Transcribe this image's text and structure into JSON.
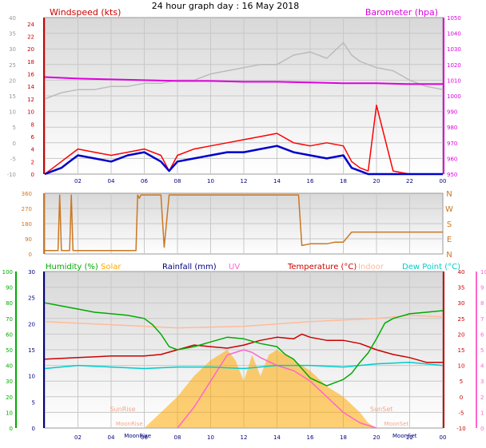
{
  "title": "24 hour graph day : 16 May 2018",
  "colors": {
    "wind_avg": "#0000cc",
    "wind_gust": "#ff0000",
    "baro": "#dd00dd",
    "baro_alt": "#bbbbbb",
    "wind_dir": "#cc7722",
    "humidity": "#00aa00",
    "solar": "#ffaa00",
    "rain": "#000080",
    "uv": "#ff66cc",
    "temp": "#cc0000",
    "indoor": "#ffbb99",
    "dew": "#00cccc"
  },
  "chart_data": [
    {
      "type": "line",
      "panel": "wind-baro",
      "legend_left": "Windspeed (kts)",
      "legend_right": "Barometer (hpa)",
      "x_ticks": [
        "02",
        "04",
        "06",
        "08",
        "10",
        "12",
        "14",
        "16",
        "18",
        "20",
        "22",
        "00"
      ],
      "xlim": [
        0,
        24
      ],
      "y_left_ticks_outer": [
        "40",
        "35",
        "30",
        "25",
        "20",
        "15",
        "10",
        "5",
        "0",
        "-5",
        "-10"
      ],
      "y_left_ticks": [
        "24",
        "22",
        "20",
        "18",
        "16",
        "14",
        "12",
        "10",
        "8",
        "6",
        "4",
        "2",
        "0"
      ],
      "y_right_ticks": [
        "1050",
        "1040",
        "1030",
        "1020",
        "1010",
        "1000",
        "990",
        "980",
        "970",
        "960",
        "950"
      ],
      "ylim_left": [
        0,
        25
      ],
      "ylim_right": [
        950,
        1050
      ],
      "series": [
        {
          "name": "Barometer",
          "axis": "right",
          "x": [
            0,
            2,
            4,
            6,
            8,
            10,
            12,
            14,
            16,
            18,
            20,
            22,
            24
          ],
          "y": [
            1012,
            1011,
            1010.5,
            1010,
            1009.5,
            1009.5,
            1009,
            1009,
            1008.5,
            1008,
            1008,
            1007.5,
            1007.5
          ]
        },
        {
          "axis": "left",
          "x": [
            0,
            0.5,
            1,
            2,
            3,
            4,
            5,
            6,
            7,
            8,
            9,
            10,
            11,
            12,
            13,
            14,
            15,
            16,
            17,
            18,
            18.5,
            19,
            20,
            21,
            22,
            23,
            24
          ],
          "y": [
            12,
            12.5,
            13,
            13.5,
            13.5,
            14,
            14,
            14.5,
            14.5,
            15,
            15,
            16,
            16.5,
            17,
            17.5,
            17.5,
            19,
            19.5,
            18.5,
            21,
            19,
            18,
            17,
            16.5,
            15,
            14,
            13.5
          ]
        },
        {
          "axis": "left",
          "x": [
            0,
            0.5,
            1,
            1.5,
            2,
            3,
            4,
            5,
            6,
            7,
            7.5,
            8,
            9,
            10,
            11,
            12,
            13,
            14,
            15,
            16,
            17,
            18,
            18.5,
            19,
            19.5,
            20,
            22,
            24
          ],
          "y": [
            0,
            0.5,
            1,
            2,
            3,
            2.5,
            2,
            3,
            3.5,
            2,
            0.5,
            2,
            2.5,
            3,
            3.5,
            3.5,
            4,
            4.5,
            3.5,
            3,
            2.5,
            3,
            1,
            0.5,
            0,
            0,
            0,
            0
          ]
        },
        {
          "axis": "left",
          "x": [
            0,
            0.5,
            1,
            1.5,
            2,
            3,
            4,
            5,
            6,
            7,
            7.5,
            8,
            9,
            10,
            11,
            12,
            13,
            14,
            15,
            16,
            17,
            18,
            18.5,
            19,
            19.5,
            20,
            21,
            22,
            23,
            24
          ],
          "y": [
            0,
            1,
            2,
            3,
            4,
            3.5,
            3,
            3.5,
            4,
            3,
            0.5,
            3,
            4,
            4.5,
            5,
            5.5,
            6,
            6.5,
            5,
            4.5,
            5,
            4.5,
            2,
            1,
            0.5,
            11,
            0.5,
            0,
            0,
            0
          ]
        }
      ]
    },
    {
      "type": "line",
      "panel": "wind-direction",
      "y_left_ticks": [
        "360",
        "270",
        "180",
        "90",
        "0"
      ],
      "y_right_labels": [
        "N",
        "W",
        "S",
        "E",
        "N"
      ],
      "ylim": [
        0,
        360
      ],
      "series": [
        {
          "x": [
            0,
            0.8,
            0.9,
            1,
            1.5,
            1.6,
            1.7,
            3,
            4,
            5,
            5.5,
            5.6,
            5.7,
            5.8,
            6,
            6.5,
            7,
            7.2,
            7.5,
            8,
            9,
            10,
            11,
            12,
            13,
            14,
            15,
            15.3,
            15.5,
            16,
            17,
            17.5,
            18,
            18.5,
            19,
            20,
            21,
            22,
            23,
            24
          ],
          "y": [
            20,
            20,
            350,
            20,
            20,
            350,
            20,
            20,
            20,
            20,
            20,
            350,
            330,
            350,
            350,
            350,
            350,
            40,
            350,
            350,
            350,
            350,
            350,
            350,
            350,
            350,
            350,
            350,
            50,
            60,
            60,
            70,
            70,
            130,
            130,
            130,
            130,
            130,
            130,
            130
          ]
        }
      ]
    },
    {
      "type": "area",
      "panel": "temp-humidity-solar",
      "legend": [
        "Humidity (%)",
        "Solar",
        "Rainfall (mm)",
        "UV",
        "Temperature (°C)",
        "Indoor",
        "Dew Point (°C)"
      ],
      "y_left_outer_ticks": [
        "100",
        "90",
        "80",
        "70",
        "60",
        "50",
        "40",
        "30",
        "20",
        "10",
        "0"
      ],
      "y_left_ticks": [
        "30",
        "25",
        "20",
        "15",
        "10",
        "5",
        "0"
      ],
      "y_right_ticks": [
        "40",
        "35",
        "30",
        "25",
        "20",
        "15",
        "10",
        "5",
        "0",
        "-5",
        "-10"
      ],
      "y_right_outer_ticks": [
        "10",
        "9",
        "8",
        "7",
        "6",
        "5",
        "4",
        "3",
        "2",
        "1",
        "0"
      ],
      "ylim_left": [
        0,
        30
      ],
      "ylim_right": [
        -10,
        40
      ],
      "annotations": [
        "SunRise",
        "SunSet",
        "MoonRise",
        "MoonSet",
        "MoonRise",
        "MoonSet"
      ],
      "series": [
        {
          "name": "Humidity",
          "axis": "left",
          "x": [
            0,
            1,
            2,
            3,
            4,
            5,
            6,
            6.5,
            7,
            7.5,
            8,
            9,
            10,
            11,
            12,
            13,
            14,
            14.5,
            15,
            15.5,
            16,
            17,
            18,
            18.5,
            19,
            19.5,
            20,
            20.5,
            21,
            22,
            23,
            24
          ],
          "y": [
            80,
            78,
            76,
            74,
            73,
            72,
            70,
            66,
            60,
            52,
            50,
            52,
            55,
            58,
            57,
            54,
            52,
            47,
            44,
            38,
            32,
            27,
            31,
            35,
            42,
            48,
            57,
            67,
            70,
            73,
            74,
            75
          ]
        },
        {
          "name": "Indoor",
          "axis": "right",
          "x": [
            0,
            4,
            8,
            12,
            16,
            20,
            22,
            24
          ],
          "y": [
            24,
            23,
            22,
            22.5,
            24,
            25,
            26,
            25.5
          ]
        },
        {
          "name": "Temperature",
          "axis": "right",
          "x": [
            0,
            2,
            4,
            6,
            7,
            8,
            9,
            10,
            11,
            12,
            13,
            14,
            15,
            15.5,
            16,
            17,
            18,
            19,
            20,
            21,
            22,
            23,
            24
          ],
          "y": [
            12,
            12.5,
            13,
            13,
            13.5,
            15,
            16.5,
            16,
            15.5,
            16.5,
            18,
            19,
            18.5,
            20,
            19,
            18,
            18,
            17,
            15,
            13.5,
            12.5,
            11,
            11
          ]
        },
        {
          "name": "Dew Point",
          "axis": "right",
          "x": [
            0,
            2,
            4,
            6,
            8,
            10,
            12,
            14,
            16,
            18,
            20,
            22,
            24
          ],
          "y": [
            9,
            10,
            9.5,
            9,
            9.5,
            9.5,
            9,
            10,
            10,
            9.5,
            10.5,
            11,
            10
          ]
        },
        {
          "name": "Solar",
          "axis": "left",
          "x": [
            6,
            7,
            8,
            9,
            10,
            11,
            11.5,
            12,
            12.5,
            13,
            13.5,
            14,
            15,
            16,
            17,
            18,
            19,
            19.5,
            20
          ],
          "y": [
            0,
            3,
            6,
            10,
            13,
            15,
            13,
            9,
            14,
            10,
            14,
            15,
            13,
            11,
            8,
            6,
            3,
            1,
            0
          ]
        },
        {
          "name": "UV",
          "axis": "left",
          "x": [
            8,
            9,
            10,
            11,
            12,
            12.5,
            13,
            14,
            15,
            16,
            17,
            18,
            19,
            20
          ],
          "y": [
            0,
            4,
            9,
            14,
            15,
            14.5,
            13.5,
            12,
            11,
            9,
            6,
            3,
            1,
            0
          ]
        }
      ]
    }
  ]
}
